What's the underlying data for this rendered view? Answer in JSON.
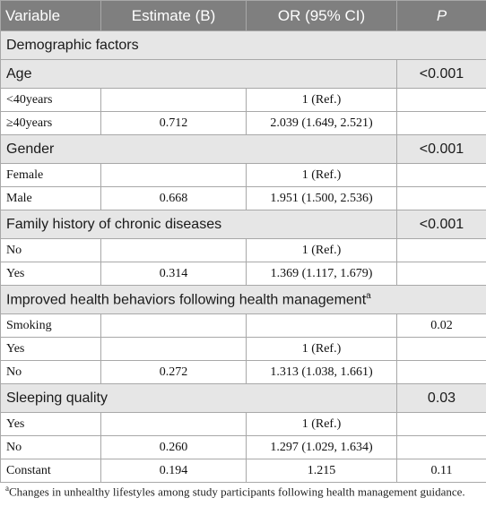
{
  "header": {
    "variable": "Variable",
    "estimate": "Estimate (B)",
    "or": "OR (95% CI)",
    "p": "P"
  },
  "sections": {
    "demographic": {
      "label": "Demographic factors"
    },
    "age": {
      "label": "Age",
      "p": "<0.001",
      "rows": [
        {
          "label": "<40years",
          "estimate": "",
          "or": "1 (Ref.)",
          "p": ""
        },
        {
          "label": "≥40years",
          "estimate": "0.712",
          "or": "2.039 (1.649, 2.521)",
          "p": ""
        }
      ]
    },
    "gender": {
      "label": "Gender",
      "p": "<0.001",
      "rows": [
        {
          "label": "Female",
          "estimate": "",
          "or": "1 (Ref.)",
          "p": ""
        },
        {
          "label": "Male",
          "estimate": "0.668",
          "or": "1.951 (1.500, 2.536)",
          "p": ""
        }
      ]
    },
    "family": {
      "label": "Family history of chronic diseases",
      "p": "<0.001",
      "rows": [
        {
          "label": "No",
          "estimate": "",
          "or": "1 (Ref.)",
          "p": ""
        },
        {
          "label": "Yes",
          "estimate": "0.314",
          "or": "1.369 (1.117, 1.679)",
          "p": ""
        }
      ]
    },
    "behaviors": {
      "label": "Improved health behaviors following health management",
      "sup": "a",
      "rows": [
        {
          "label": "Smoking",
          "estimate": "",
          "or": "",
          "p": "0.02"
        },
        {
          "label": "Yes",
          "estimate": "",
          "or": "1 (Ref.)",
          "p": ""
        },
        {
          "label": "No",
          "estimate": "0.272",
          "or": "1.313 (1.038, 1.661)",
          "p": ""
        }
      ]
    },
    "sleeping": {
      "label": "Sleeping quality",
      "p": "0.03",
      "rows": [
        {
          "label": "Yes",
          "estimate": "",
          "or": "1 (Ref.)",
          "p": ""
        },
        {
          "label": "No",
          "estimate": "0.260",
          "or": "1.297 (1.029, 1.634)",
          "p": ""
        },
        {
          "label": "Constant",
          "estimate": "0.194",
          "or": "1.215",
          "p": "0.11"
        }
      ]
    }
  },
  "footnote": {
    "marker": "a",
    "text": "Changes in unhealthy lifestyles among study participants following health management guidance."
  }
}
